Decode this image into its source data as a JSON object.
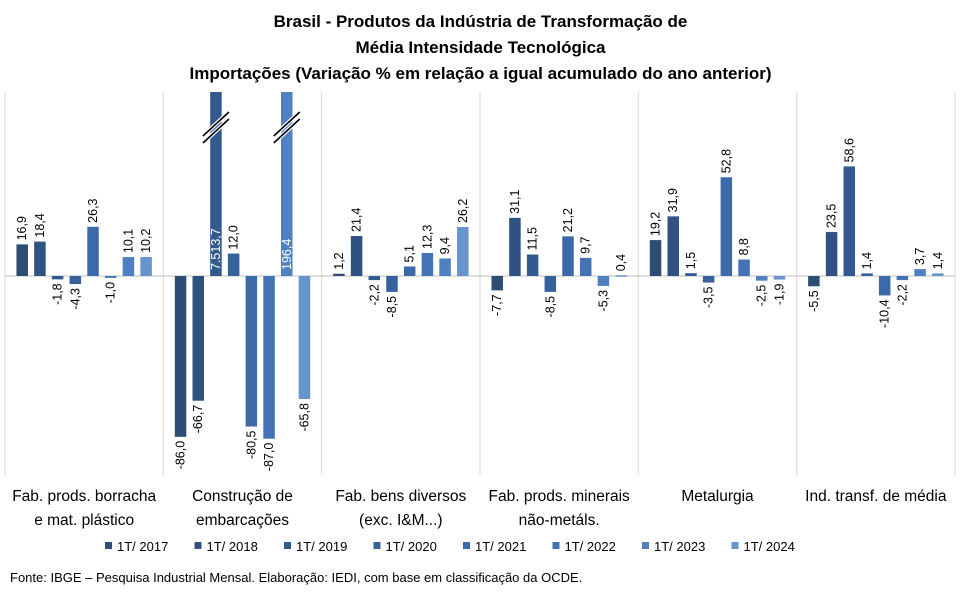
{
  "title_lines": [
    "Brasil - Produtos da Indústria de Transformação de",
    "Média Intensidade Tecnológica",
    "Importações (Variação % em relação a igual acumulado do ano anterior)"
  ],
  "source": "Fonte: IBGE – Pesquisa Industrial Mensal. Elaboração: IEDI, com base em classificação da OCDE.",
  "chart_data": {
    "type": "bar",
    "categories": [
      [
        "Fab. prods. borracha",
        "e mat. plástico"
      ],
      [
        "Construção de",
        "embarcações"
      ],
      [
        "Fab. bens diversos",
        "(exc. I&M...)"
      ],
      [
        "Fab. prods. minerais",
        "não-metáls."
      ],
      [
        "Metalurgia"
      ],
      [
        "Ind. transf. de média"
      ]
    ],
    "series": [
      {
        "name": "1T/ 2017",
        "color": "#2d4d74",
        "values": [
          16.9,
          -86.0,
          1.2,
          -7.7,
          19.2,
          -5.5
        ]
      },
      {
        "name": "1T/ 2018",
        "color": "#2f5282",
        "values": [
          18.4,
          -66.7,
          21.4,
          31.1,
          31.9,
          23.5
        ]
      },
      {
        "name": "1T/ 2019",
        "color": "#325a8f",
        "values": [
          -1.8,
          7513.7,
          -2.2,
          11.5,
          1.5,
          58.6
        ]
      },
      {
        "name": "1T/ 2020",
        "color": "#36619b",
        "values": [
          -4.3,
          12.0,
          -8.5,
          -8.5,
          -3.5,
          1.4
        ]
      },
      {
        "name": "1T/ 2021",
        "color": "#3c6aa8",
        "values": [
          26.3,
          -80.5,
          5.1,
          21.2,
          52.8,
          -10.4
        ]
      },
      {
        "name": "1T/ 2022",
        "color": "#4373b5",
        "values": [
          -1.0,
          -87.0,
          12.3,
          9.7,
          8.8,
          -2.2
        ]
      },
      {
        "name": "1T/ 2023",
        "color": "#4f80c2",
        "values": [
          10.1,
          196.4,
          9.4,
          -5.3,
          -2.5,
          3.7
        ]
      },
      {
        "name": "1T/ 2024",
        "color": "#6794cc",
        "values": [
          10.2,
          -65.8,
          26.2,
          0.4,
          -1.9,
          1.4
        ]
      }
    ],
    "value_labels": [
      [
        "16,9",
        "18,4",
        "-1,8",
        "-4,3",
        "26,3",
        "-1,0",
        "10,1",
        "10,2"
      ],
      [
        "-86,0",
        "-66,7",
        "7.513,7",
        "12,0",
        "-80,5",
        "-87,0",
        "196,4",
        "-65,8"
      ],
      [
        "1,2",
        "21,4",
        "-2,2",
        "-8,5",
        "5,1",
        "12,3",
        "9,4",
        "26,2"
      ],
      [
        "-7,7",
        "31,1",
        "11,5",
        "-8,5",
        "21,2",
        "9,7",
        "-5,3",
        "0,4"
      ],
      [
        "19,2",
        "31,9",
        "1,5",
        "-3,5",
        "52,8",
        "8,8",
        "-2,5",
        "-1,9"
      ],
      [
        "-5,5",
        "23,5",
        "58,6",
        "1,4",
        "-10,4",
        "-2,2",
        "3,7",
        "1,4"
      ]
    ],
    "ylim": [
      -95,
      80
    ],
    "axis_break": true,
    "grid": false,
    "legend_position": "bottom"
  }
}
